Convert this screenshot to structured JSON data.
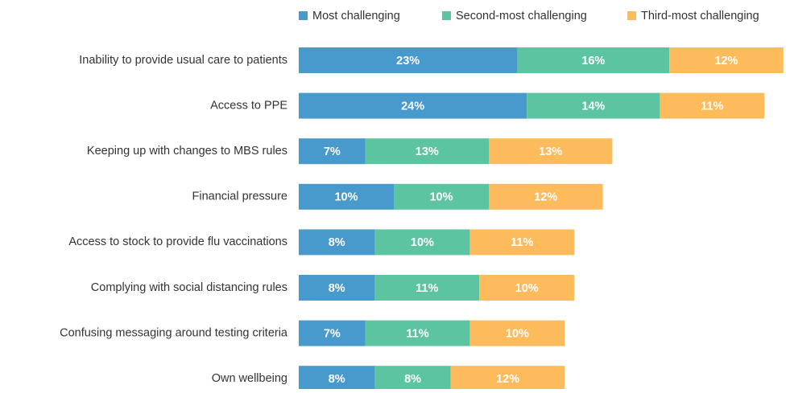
{
  "chart_data": {
    "type": "stacked-bar-horizontal",
    "categories": [
      "Inability to provide usual care to patients",
      "Access to PPE",
      "Keeping up with changes to MBS rules",
      "Financial pressure",
      "Access to stock to provide flu vaccinations",
      "Complying with social distancing rules",
      "Confusing messaging around testing criteria",
      "Own wellbeing"
    ],
    "series": [
      {
        "name": "Most challenging",
        "color": "#4899cc",
        "values": [
          23,
          24,
          7,
          10,
          8,
          8,
          7,
          8
        ],
        "value_labels": [
          "23%",
          "24%",
          "7%",
          "10%",
          "8%",
          "8%",
          "7%",
          "8%"
        ]
      },
      {
        "name": "Second-most challenging",
        "color": "#5cc4a1",
        "values": [
          16,
          14,
          13,
          10,
          10,
          11,
          11,
          8
        ],
        "value_labels": [
          "16%",
          "14%",
          "13%",
          "10%",
          "10%",
          "11%",
          "11%",
          "8%"
        ]
      },
      {
        "name": "Third-most challenging",
        "color": "#fdbb5b",
        "values": [
          12,
          11,
          13,
          12,
          11,
          10,
          10,
          12
        ],
        "value_labels": [
          "12%",
          "11%",
          "13%",
          "12%",
          "11%",
          "10%",
          "10%",
          "12%"
        ]
      }
    ],
    "legend": "top-right"
  }
}
